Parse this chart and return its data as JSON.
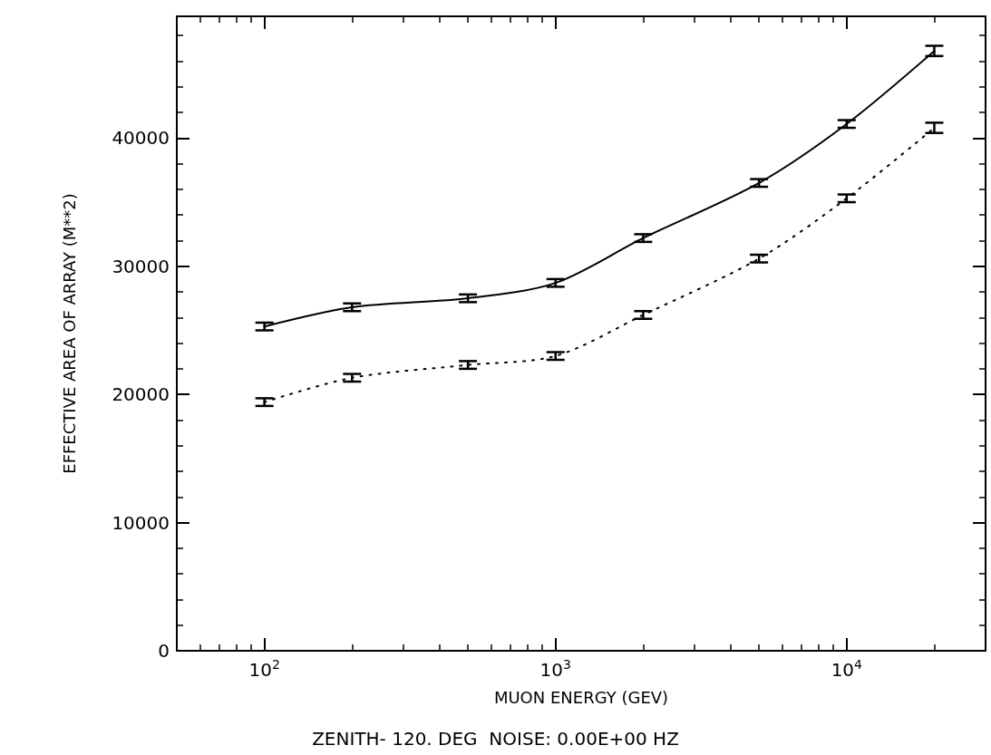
{
  "chart_data": {
    "type": "line",
    "xlabel": "MUON ENERGY (GEV)",
    "ylabel": "EFFECTIVE AREA OF ARRAY (M**2)",
    "annotations": [
      "ZENITH- 120. DEG  NOISE: 0.00E+00 HZ"
    ],
    "x": [
      100,
      200,
      500,
      1000,
      2000,
      5000,
      10000,
      20000
    ],
    "series": [
      {
        "color": "#000000",
        "line_style": "solid",
        "values": [
          25300,
          26800,
          27500,
          28700,
          32200,
          36500,
          41100,
          46800
        ],
        "errors": [
          300,
          300,
          300,
          300,
          300,
          300,
          300,
          400
        ]
      },
      {
        "color": "#000000",
        "line_style": "dotted",
        "values": [
          19400,
          21300,
          22300,
          23000,
          26200,
          30600,
          35300,
          40800
        ],
        "errors": [
          300,
          300,
          300,
          300,
          300,
          300,
          300,
          400
        ]
      }
    ],
    "log": "x",
    "xlim": [
      50,
      30000
    ],
    "xticks": [
      {
        "value": 100,
        "label": "10$^{2}$"
      },
      {
        "value": 1000,
        "label": "10$^{3}$"
      },
      {
        "value": 10000,
        "label": "10$^{4}$"
      }
    ],
    "ylim": [
      0,
      49500
    ],
    "yticks": [
      0,
      10000,
      20000,
      30000,
      40000
    ],
    "marker": "none"
  }
}
